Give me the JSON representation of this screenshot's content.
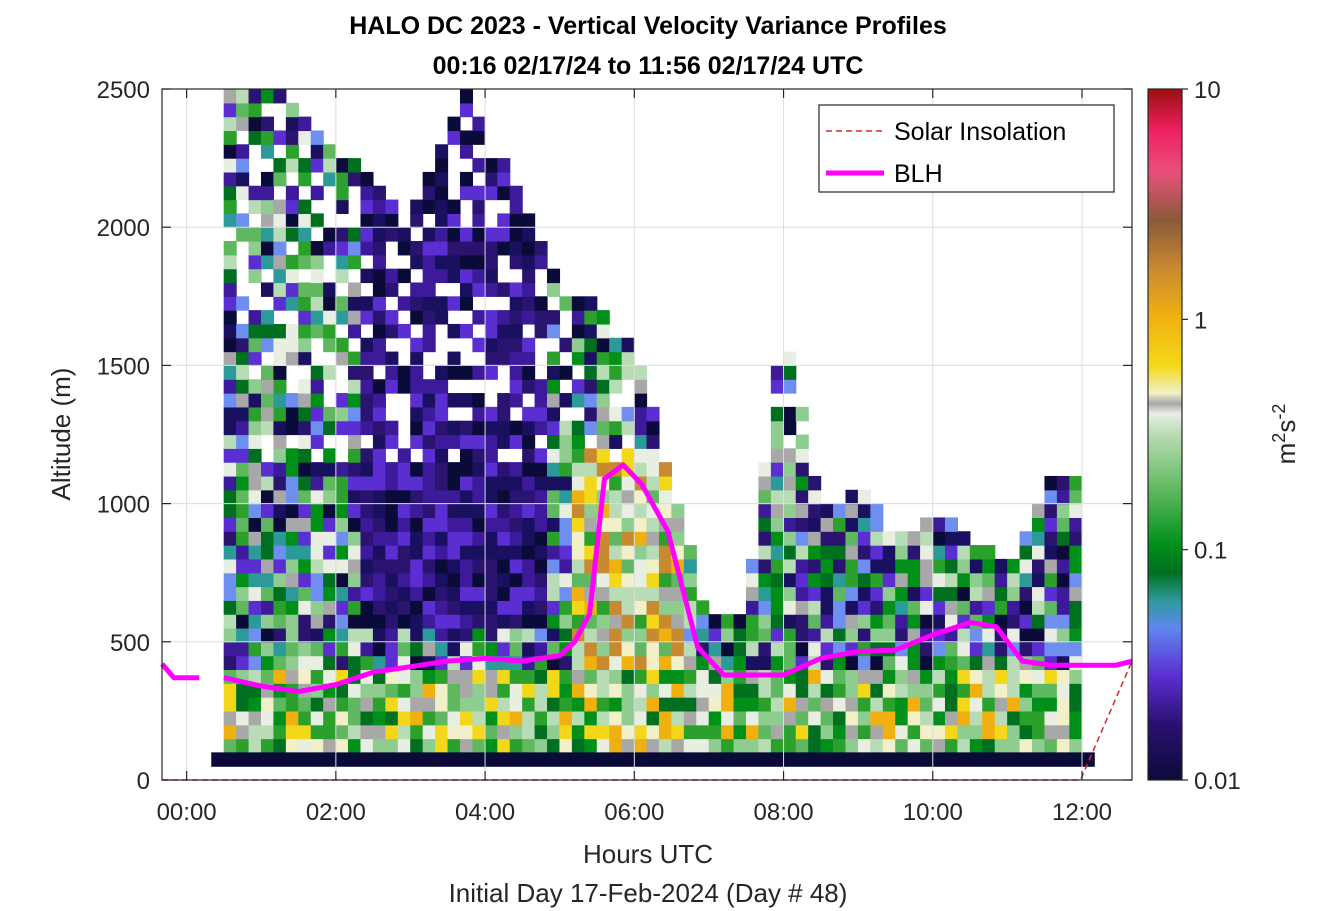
{
  "chart_data": {
    "type": "heatmap",
    "title": "HALO DC 2023 - Vertical Velocity Variance Profiles",
    "subtitle": "00:16 02/17/24 to 11:56 02/17/24  UTC",
    "xlabel": "Hours UTC",
    "xlabel2": "Initial Day 17-Feb-2024 (Day # 48)",
    "ylabel": "Altitude (m)",
    "xlim": [
      -0.33,
      12.67
    ],
    "ylim": [
      0,
      2500
    ],
    "x_ticks": [
      0,
      2,
      4,
      6,
      8,
      10,
      12
    ],
    "x_tick_labels": [
      "00:00",
      "02:00",
      "04:00",
      "06:00",
      "08:00",
      "10:00",
      "12:00"
    ],
    "y_ticks": [
      0,
      500,
      1000,
      1500,
      2000,
      2500
    ],
    "y_tick_labels": [
      "0",
      "500",
      "1000",
      "1500",
      "2000",
      "2500"
    ],
    "grid": true,
    "legend_position": "top-right",
    "colorbar": {
      "scale": "log",
      "range": [
        0.01,
        10
      ],
      "ticks": [
        0.01,
        0.1,
        1,
        10
      ],
      "tick_labels": [
        "0.01",
        "0.1",
        "1",
        "10"
      ],
      "unit_main": "m",
      "unit_sup1": "2",
      "unit_mid": "s",
      "unit_sup2": "-2"
    },
    "series": [
      {
        "name": "Solar Insolation",
        "style": "dashed",
        "color": "#d62728",
        "x": [
          -0.33,
          11.98,
          12.67
        ],
        "y": [
          0,
          0,
          430
        ]
      },
      {
        "name": "BLH",
        "style": "solid",
        "color": "#ff00ff",
        "segments": [
          {
            "x": [
              -0.33,
              -0.17,
              0.17
            ],
            "y": [
              420,
              370,
              370
            ]
          },
          {
            "x": [
              0.5,
              1.0,
              1.5,
              2.0,
              2.5,
              3.0,
              3.5,
              4.0,
              4.5,
              5.0,
              5.2,
              5.4,
              5.6,
              5.85,
              6.1,
              6.45,
              6.85,
              7.2,
              7.6,
              8.0,
              8.5,
              9.0,
              9.5,
              10.0,
              10.5,
              10.85,
              11.2,
              11.6,
              12.0,
              12.45,
              12.67
            ],
            "y": [
              370,
              340,
              320,
              345,
              390,
              410,
              430,
              440,
              430,
              450,
              500,
              600,
              1090,
              1140,
              1070,
              900,
              480,
              380,
              380,
              380,
              440,
              465,
              470,
              525,
              570,
              555,
              430,
              415,
              415,
              415,
              430
            ]
          }
        ]
      }
    ],
    "heatmap": {
      "description": "Vertical velocity variance (m^2 s^-2), approx. 10-minute x 50 m bins",
      "time_bins": [
        0.33,
        12.0
      ],
      "bin_minutes": 10,
      "bin_height_m": 50,
      "approx_top_of_data_m": [
        [
          0.5,
          2500
        ],
        [
          1.0,
          2500
        ],
        [
          2.0,
          2300
        ],
        [
          3.0,
          2000
        ],
        [
          3.7,
          2500
        ],
        [
          4.5,
          2100
        ],
        [
          5.0,
          1750
        ],
        [
          5.5,
          1700
        ],
        [
          6.0,
          1550
        ],
        [
          6.5,
          1050
        ],
        [
          7.0,
          550
        ],
        [
          7.5,
          600
        ],
        [
          8.0,
          1650
        ],
        [
          8.5,
          950
        ],
        [
          9.0,
          1050
        ],
        [
          9.5,
          850
        ],
        [
          10.0,
          950
        ],
        [
          10.5,
          850
        ],
        [
          11.0,
          750
        ],
        [
          11.6,
          1100
        ],
        [
          12.0,
          1100
        ]
      ],
      "lowest_bin_value": 0.01
    }
  }
}
